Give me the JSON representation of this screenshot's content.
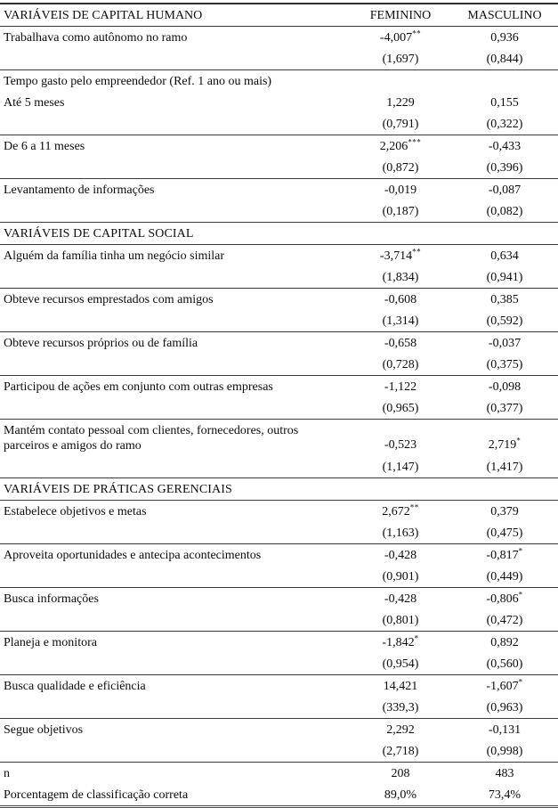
{
  "colors": {
    "background": "#ffffff",
    "text": "#0c0c0c",
    "rule_line": "#3a3a3a",
    "top_border": "#2e2e2e",
    "bottom_border": "#4a4a4a"
  },
  "table": {
    "header": {
      "col1": "VARIÁVEIS DE CAPITAL HUMANO",
      "col2": "FEMININO",
      "col3": "MASCULINO"
    },
    "rows": [
      {
        "type": "coef",
        "label": "Trabalhava como autônomo no ramo",
        "fem": "-4,007",
        "fem_sup": "**",
        "masc": "0,936"
      },
      {
        "type": "se",
        "fem": "(1,697)",
        "masc": "(0,844)",
        "rule": true
      },
      {
        "type": "span",
        "label": "Tempo gasto pelo empreendedor (Ref. 1 ano ou mais)"
      },
      {
        "type": "coef",
        "label": "Até 5 meses",
        "fem": "1,229",
        "masc": "0,155"
      },
      {
        "type": "se",
        "fem": "(0,791)",
        "masc": "(0,322)",
        "rule": true
      },
      {
        "type": "coef",
        "label": "De 6 a 11 meses",
        "fem": "2,206",
        "fem_sup": "***",
        "masc": "-0,433"
      },
      {
        "type": "se",
        "fem": "(0,872)",
        "masc": "(0,396)",
        "rule": true
      },
      {
        "type": "coef",
        "label": "Levantamento de informações",
        "fem": "-0,019",
        "masc": "-0,087"
      },
      {
        "type": "se",
        "fem": "(0,187)",
        "masc": "(0,082)",
        "rule": true
      },
      {
        "type": "section",
        "label": "VARIÁVEIS DE CAPITAL SOCIAL",
        "rule": true
      },
      {
        "type": "coef",
        "label": "Alguém da família tinha um negócio similar",
        "fem": "-3,714",
        "fem_sup": "**",
        "masc": "0,634"
      },
      {
        "type": "se",
        "fem": "(1,834)",
        "masc": "(0,941)",
        "rule": true
      },
      {
        "type": "coef",
        "label": "Obteve recursos emprestados com amigos",
        "fem": "-0,608",
        "masc": "0,385"
      },
      {
        "type": "se",
        "fem": "(1,314)",
        "masc": "(0,592)",
        "rule": true
      },
      {
        "type": "coef",
        "label": "Obteve recursos próprios ou de família",
        "fem": "-0,658",
        "masc": "-0,037"
      },
      {
        "type": "se",
        "fem": "(0,728)",
        "masc": "(0,375)",
        "rule": true
      },
      {
        "type": "coef",
        "label": "Participou de ações em conjunto com outras empresas",
        "fem": "-1,122",
        "masc": "-0,098"
      },
      {
        "type": "se",
        "fem": "(0,965)",
        "masc": "(0,377)",
        "rule": true
      },
      {
        "type": "coef",
        "label": "Mantém contato pessoal com clientes, fornecedores, outros parceiros e amigos do ramo",
        "fem": "-0,523",
        "masc": "2,719",
        "masc_sup": "*",
        "tall": true
      },
      {
        "type": "se",
        "fem": "(1,147)",
        "masc": "(1,417)",
        "rule": true
      },
      {
        "type": "section",
        "label": "VARIÁVEIS DE PRÁTICAS GERENCIAIS",
        "rule": true
      },
      {
        "type": "coef",
        "label": "Estabelece objetivos e metas",
        "fem": "2,672",
        "fem_sup": "**",
        "masc": "0,379"
      },
      {
        "type": "se",
        "fem": "(1,163)",
        "masc": "(0,475)",
        "rule": true
      },
      {
        "type": "coef",
        "label": "Aproveita oportunidades e antecipa acontecimentos",
        "fem": "-0,428",
        "masc": "-0,817",
        "masc_sup": "*"
      },
      {
        "type": "se",
        "fem": "(0,901)",
        "masc": "(0,449)",
        "rule": true
      },
      {
        "type": "coef",
        "label": "Busca informações",
        "fem": "-0,428",
        "masc": "-0,806",
        "masc_sup": "*"
      },
      {
        "type": "se",
        "fem": "(0,801)",
        "masc": "(0,472)",
        "rule": true
      },
      {
        "type": "coef",
        "label": "Planeja e monitora",
        "fem": "-1,842",
        "fem_sup": "*",
        "masc": "0,892"
      },
      {
        "type": "se",
        "fem": "(0,954)",
        "masc": "(0,560)",
        "rule": true
      },
      {
        "type": "coef",
        "label": "Busca qualidade e eficiência",
        "fem": "14,421",
        "masc": "-1,607",
        "masc_sup": "*"
      },
      {
        "type": "se",
        "fem": "(339,3)",
        "masc": "(0,963)",
        "rule": true
      },
      {
        "type": "coef",
        "label": "Segue objetivos",
        "fem": "2,292",
        "masc": "-0,131"
      },
      {
        "type": "se",
        "fem": "(2,718)",
        "masc": "(0,998)",
        "rule": true
      },
      {
        "type": "stat",
        "label": "n",
        "fem": "208",
        "masc": "483"
      },
      {
        "type": "stat",
        "label": "Porcentagem de classificação correta",
        "fem": "89,0%",
        "masc": "73,4%"
      }
    ]
  }
}
